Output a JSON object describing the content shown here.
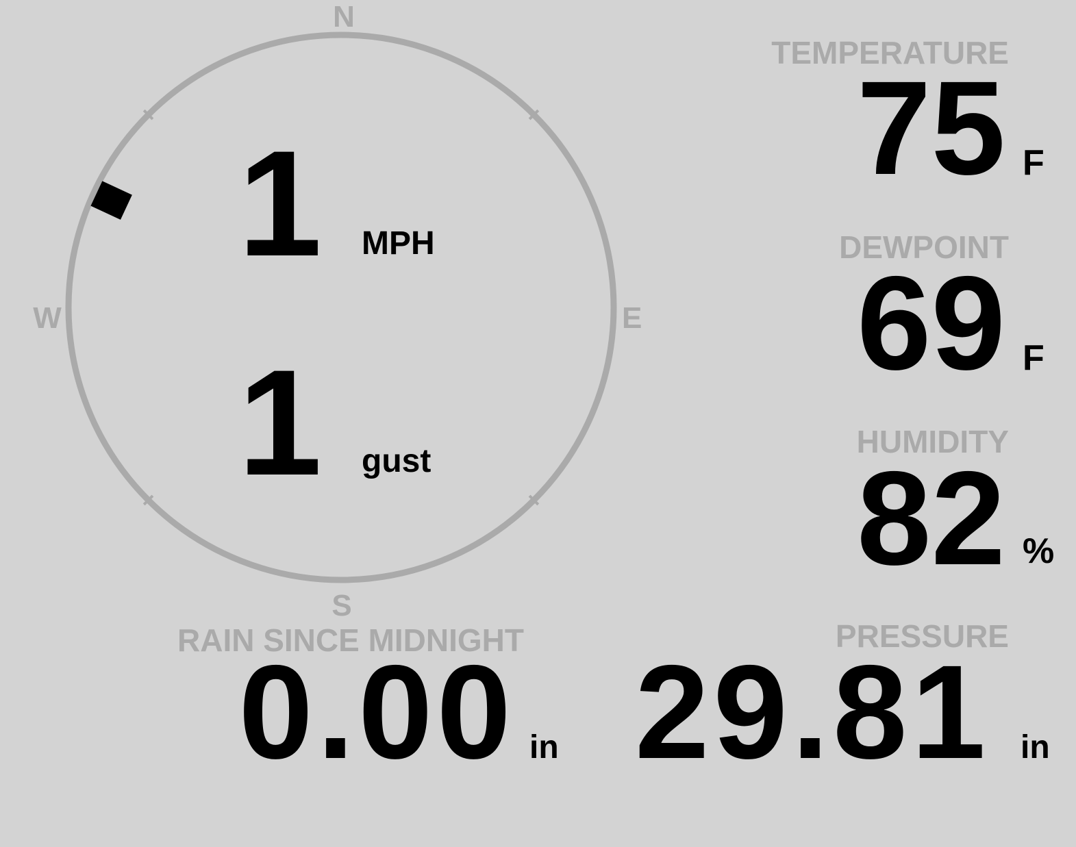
{
  "colors": {
    "background": "#d3d3d3",
    "label": "#aaaaaa",
    "value": "#000000"
  },
  "wind": {
    "compass": {
      "n": "N",
      "e": "E",
      "s": "S",
      "w": "W"
    },
    "direction_deg": 295,
    "speed": "1",
    "speed_unit": "MPH",
    "gust": "1",
    "gust_unit": "gust"
  },
  "temperature": {
    "label": "TEMPERATURE",
    "value": "75",
    "unit": "F"
  },
  "dewpoint": {
    "label": "DEWPOINT",
    "value": "69",
    "unit": "F"
  },
  "humidity": {
    "label": "HUMIDITY",
    "value": "82",
    "unit": "%"
  },
  "pressure": {
    "label": "PRESSURE",
    "value": "29.81",
    "unit": "in"
  },
  "rain": {
    "label": "RAIN SINCE MIDNIGHT",
    "value": "0.00",
    "unit": "in"
  }
}
